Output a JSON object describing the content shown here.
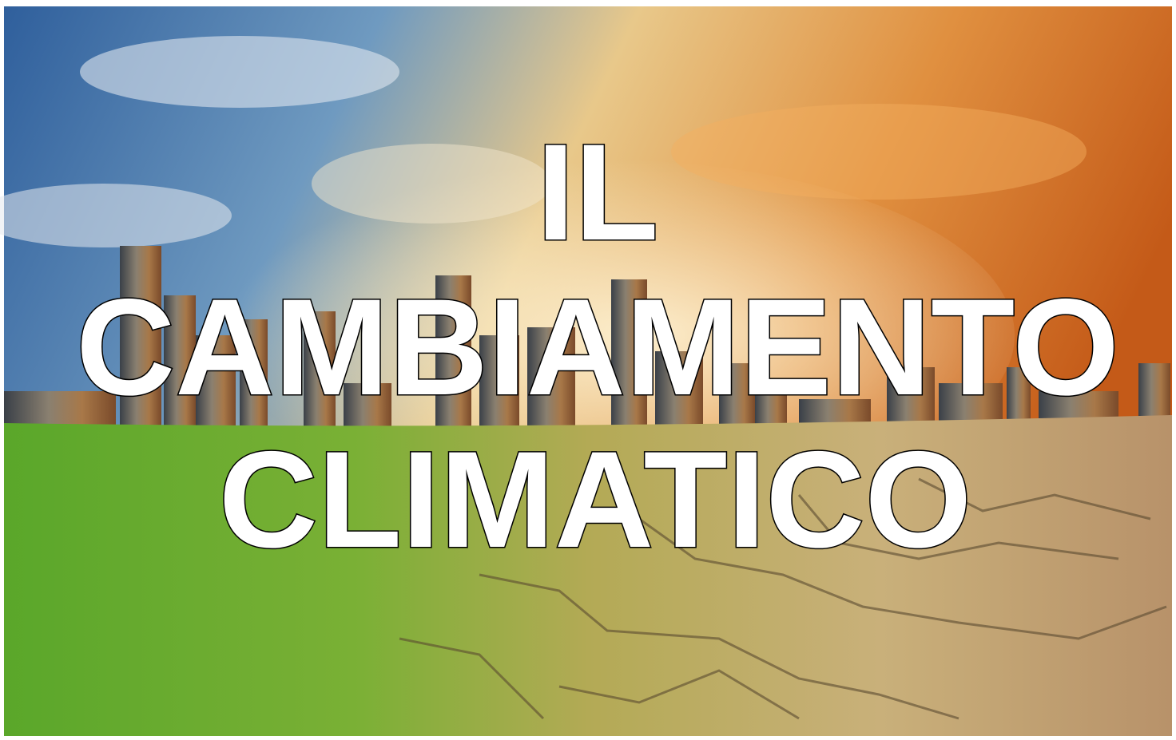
{
  "title": {
    "lines": [
      "IL",
      "CAMBIAMENTO",
      "CLIMATICO"
    ]
  }
}
